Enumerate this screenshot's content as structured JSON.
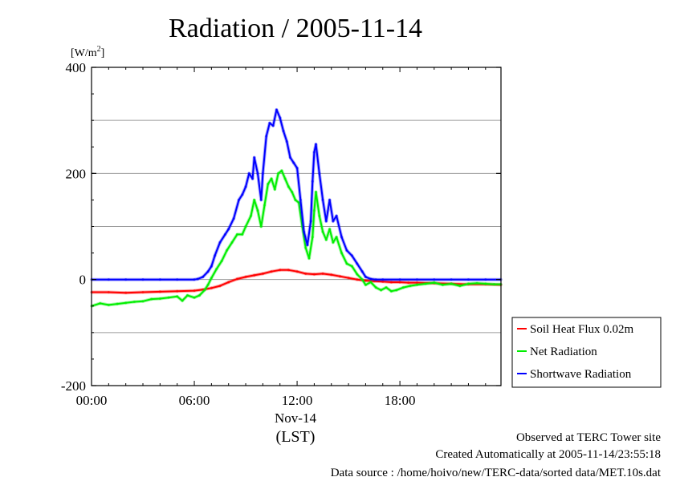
{
  "chart_data": {
    "type": "line",
    "title": "Radiation / 2005-11-14",
    "ylabel_unit": "[W/m",
    "ylabel_sup": "2",
    "ylabel_close": "]",
    "xlabel": "(LST)",
    "date_label": "Nov-14",
    "ylim": [
      -200,
      400
    ],
    "xlim": [
      0,
      23.9
    ],
    "yticks": [
      400,
      200,
      0,
      -200
    ],
    "ytick_labels": [
      "400",
      "200",
      "0",
      "-200"
    ],
    "xticks": [
      0,
      6,
      12,
      18
    ],
    "xtick_labels": [
      "00:00",
      "06:00",
      "12:00",
      "18:00"
    ],
    "grid_y": [
      300,
      200,
      100,
      0,
      -100
    ],
    "legend_position": "right",
    "series": [
      {
        "name": "Soil Heat Flux 0.02m",
        "color": "#ff0000",
        "points": [
          [
            0,
            -24
          ],
          [
            1,
            -24
          ],
          [
            2,
            -25
          ],
          [
            3,
            -24
          ],
          [
            4,
            -23
          ],
          [
            5,
            -22
          ],
          [
            6,
            -21
          ],
          [
            6.5,
            -19
          ],
          [
            7,
            -16
          ],
          [
            7.5,
            -12
          ],
          [
            8,
            -5
          ],
          [
            8.5,
            1
          ],
          [
            9,
            5
          ],
          [
            9.5,
            8
          ],
          [
            10,
            11
          ],
          [
            10.5,
            15
          ],
          [
            11,
            18
          ],
          [
            11.5,
            18
          ],
          [
            12,
            15
          ],
          [
            12.5,
            11
          ],
          [
            13,
            10
          ],
          [
            13.5,
            11
          ],
          [
            14,
            9
          ],
          [
            14.5,
            6
          ],
          [
            15,
            3
          ],
          [
            15.5,
            0
          ],
          [
            16,
            -2
          ],
          [
            16.5,
            -3
          ],
          [
            17,
            -4
          ],
          [
            17.5,
            -5
          ],
          [
            18,
            -5
          ],
          [
            18.5,
            -6
          ],
          [
            19,
            -6
          ],
          [
            20,
            -7
          ],
          [
            21,
            -8
          ],
          [
            22,
            -9
          ],
          [
            23,
            -9
          ],
          [
            23.9,
            -10
          ]
        ]
      },
      {
        "name": "Net Radiation",
        "color": "#00ee00",
        "points": [
          [
            0,
            -50
          ],
          [
            0.5,
            -45
          ],
          [
            1,
            -48
          ],
          [
            1.5,
            -46
          ],
          [
            2,
            -44
          ],
          [
            2.5,
            -42
          ],
          [
            3,
            -41
          ],
          [
            3.5,
            -37
          ],
          [
            4,
            -36
          ],
          [
            4.5,
            -34
          ],
          [
            5,
            -32
          ],
          [
            5.3,
            -40
          ],
          [
            5.6,
            -30
          ],
          [
            6,
            -34
          ],
          [
            6.3,
            -30
          ],
          [
            6.6,
            -20
          ],
          [
            6.8,
            -10
          ],
          [
            7.0,
            3
          ],
          [
            7.3,
            20
          ],
          [
            7.6,
            35
          ],
          [
            7.9,
            55
          ],
          [
            8.2,
            70
          ],
          [
            8.5,
            85
          ],
          [
            8.8,
            85
          ],
          [
            9.0,
            100
          ],
          [
            9.3,
            120
          ],
          [
            9.5,
            150
          ],
          [
            9.7,
            130
          ],
          [
            9.9,
            100
          ],
          [
            10.1,
            140
          ],
          [
            10.3,
            180
          ],
          [
            10.5,
            190
          ],
          [
            10.7,
            170
          ],
          [
            10.9,
            200
          ],
          [
            11.1,
            205
          ],
          [
            11.3,
            190
          ],
          [
            11.5,
            175
          ],
          [
            11.7,
            165
          ],
          [
            11.9,
            150
          ],
          [
            12.1,
            145
          ],
          [
            12.3,
            100
          ],
          [
            12.5,
            60
          ],
          [
            12.7,
            40
          ],
          [
            12.9,
            80
          ],
          [
            13.0,
            130
          ],
          [
            13.1,
            165
          ],
          [
            13.3,
            120
          ],
          [
            13.5,
            90
          ],
          [
            13.7,
            75
          ],
          [
            13.9,
            95
          ],
          [
            14.1,
            70
          ],
          [
            14.3,
            80
          ],
          [
            14.6,
            50
          ],
          [
            14.9,
            30
          ],
          [
            15.2,
            25
          ],
          [
            15.5,
            10
          ],
          [
            15.8,
            0
          ],
          [
            16.0,
            -10
          ],
          [
            16.3,
            -5
          ],
          [
            16.6,
            -15
          ],
          [
            16.9,
            -20
          ],
          [
            17.2,
            -15
          ],
          [
            17.5,
            -22
          ],
          [
            17.8,
            -20
          ],
          [
            18.2,
            -15
          ],
          [
            18.6,
            -12
          ],
          [
            19,
            -10
          ],
          [
            19.5,
            -8
          ],
          [
            20,
            -6
          ],
          [
            20.5,
            -10
          ],
          [
            21,
            -8
          ],
          [
            21.5,
            -12
          ],
          [
            22,
            -8
          ],
          [
            22.5,
            -7
          ],
          [
            23,
            -8
          ],
          [
            23.5,
            -9
          ],
          [
            23.9,
            -9
          ]
        ]
      },
      {
        "name": "Shortwave Radiation",
        "color": "#0000ff",
        "points": [
          [
            0,
            0
          ],
          [
            1,
            0
          ],
          [
            2,
            0
          ],
          [
            3,
            0
          ],
          [
            4,
            0
          ],
          [
            5,
            0
          ],
          [
            6,
            0
          ],
          [
            6.2,
            1
          ],
          [
            6.5,
            5
          ],
          [
            6.8,
            15
          ],
          [
            7.0,
            25
          ],
          [
            7.2,
            45
          ],
          [
            7.5,
            70
          ],
          [
            7.8,
            85
          ],
          [
            8.0,
            95
          ],
          [
            8.3,
            115
          ],
          [
            8.6,
            150
          ],
          [
            8.8,
            160
          ],
          [
            9.0,
            175
          ],
          [
            9.2,
            200
          ],
          [
            9.4,
            190
          ],
          [
            9.5,
            230
          ],
          [
            9.7,
            200
          ],
          [
            9.9,
            150
          ],
          [
            10.0,
            200
          ],
          [
            10.2,
            270
          ],
          [
            10.4,
            295
          ],
          [
            10.6,
            290
          ],
          [
            10.8,
            320
          ],
          [
            11.0,
            305
          ],
          [
            11.2,
            280
          ],
          [
            11.4,
            260
          ],
          [
            11.6,
            230
          ],
          [
            11.8,
            220
          ],
          [
            12.0,
            210
          ],
          [
            12.2,
            150
          ],
          [
            12.4,
            90
          ],
          [
            12.6,
            65
          ],
          [
            12.8,
            110
          ],
          [
            12.9,
            185
          ],
          [
            13.0,
            240
          ],
          [
            13.1,
            255
          ],
          [
            13.3,
            200
          ],
          [
            13.5,
            150
          ],
          [
            13.7,
            110
          ],
          [
            13.9,
            150
          ],
          [
            14.1,
            110
          ],
          [
            14.3,
            120
          ],
          [
            14.6,
            80
          ],
          [
            14.9,
            55
          ],
          [
            15.2,
            45
          ],
          [
            15.5,
            30
          ],
          [
            15.8,
            15
          ],
          [
            16.0,
            5
          ],
          [
            16.3,
            1
          ],
          [
            16.6,
            0
          ],
          [
            17,
            0
          ],
          [
            18,
            0
          ],
          [
            19,
            0
          ],
          [
            20,
            0
          ],
          [
            21,
            0
          ],
          [
            22,
            0
          ],
          [
            23,
            0
          ],
          [
            23.9,
            0
          ]
        ]
      }
    ]
  },
  "footer": {
    "line1": "Observed at TERC Tower site",
    "line2": "Created Automatically at 2005-11-14/23:55:18",
    "line3": "Data source : /home/hoivo/new/TERC-data/sorted  data/MET.10s.dat"
  }
}
